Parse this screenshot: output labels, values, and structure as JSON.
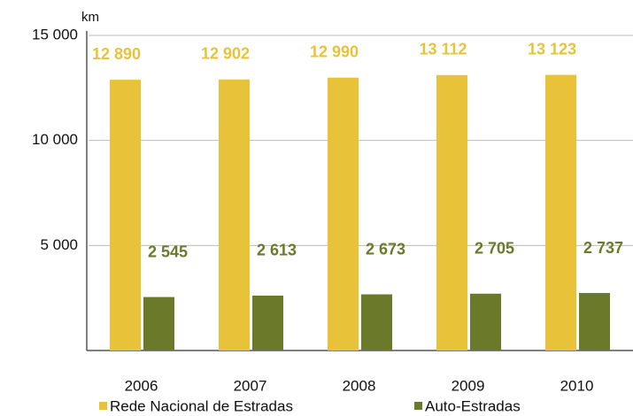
{
  "chart_data": {
    "type": "bar",
    "y_label": "km",
    "categories": [
      "2006",
      "2007",
      "2008",
      "2009",
      "2010"
    ],
    "series": [
      {
        "name": "Rede Nacional de Estradas",
        "color": "#e8c33a",
        "values": [
          12890,
          12902,
          12990,
          13112,
          13123
        ],
        "value_labels": [
          "12 890",
          "12 902",
          "12 990",
          "13 112",
          "13 123"
        ]
      },
      {
        "name": "Auto-Estradas",
        "color": "#6b7a2a",
        "values": [
          2545,
          2613,
          2673,
          2705,
          2737
        ],
        "value_labels": [
          "2 545",
          "2 613",
          "2 673",
          "2 705",
          "2 737"
        ]
      }
    ],
    "ylim": [
      0,
      15000
    ],
    "yticks": [
      {
        "value": 5000,
        "label": "5 000"
      },
      {
        "value": 10000,
        "label": "10 000"
      },
      {
        "value": 15000,
        "label": "15 000"
      }
    ],
    "grid": true
  }
}
